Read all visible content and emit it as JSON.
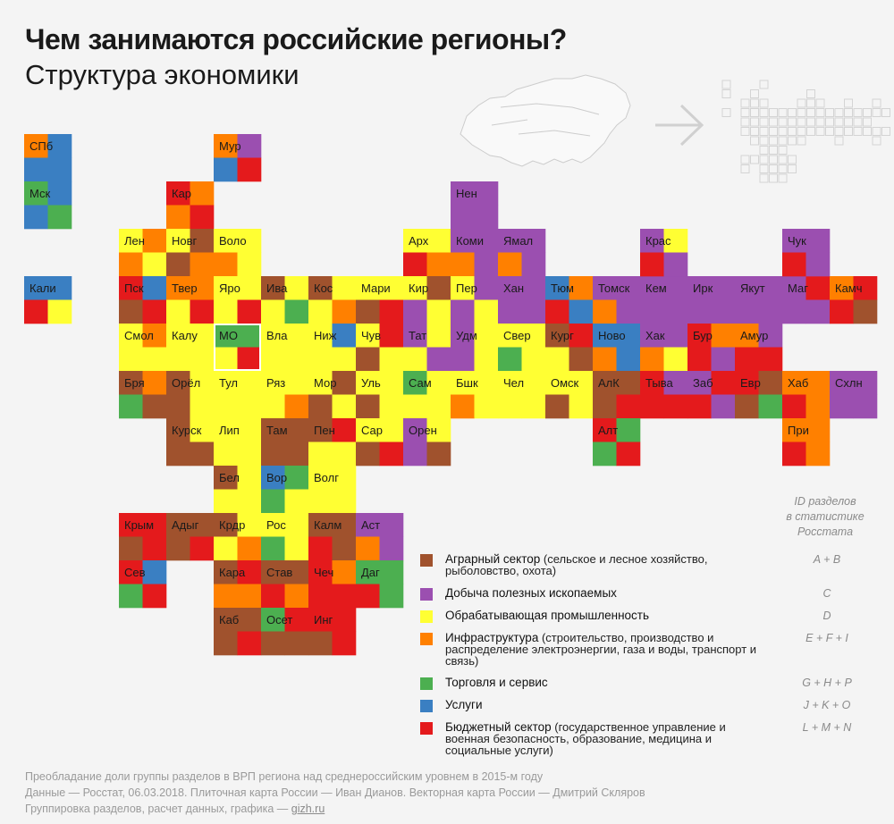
{
  "header": {
    "title": "Чем занимаются российские регионы?",
    "subtitle": "Структура экономики"
  },
  "colors": {
    "A": "#a0522d",
    "C": "#9b4fb0",
    "D": "#ffff33",
    "I": "#ff8000",
    "G": "#4caf50",
    "J": "#3a7fc2",
    "L": "#e41a1c"
  },
  "legend": {
    "id_header": [
      "ID разделов",
      "в статистике",
      "Росстата"
    ],
    "items": [
      {
        "key": "A",
        "name": "Аграрный сектор",
        "desc": " (сельское и лесное хозяйство,",
        "desc2": "рыболовство, охота)",
        "desc3": "",
        "code": "A + B"
      },
      {
        "key": "C",
        "name": "Добыча полезных ископаемых",
        "desc": "",
        "desc2": "",
        "desc3": "",
        "code": "C"
      },
      {
        "key": "D",
        "name": "Обрабатывающая промышленность",
        "desc": "",
        "desc2": "",
        "desc3": "",
        "code": "D"
      },
      {
        "key": "I",
        "name": "Инфраструктура",
        "desc": " (строительство, производство и",
        "desc2": "распределение электроэнергии, газа и воды, транспорт и",
        "desc3": "связь)",
        "code": "E + F + I"
      },
      {
        "key": "G",
        "name": "Торговля и сервис",
        "desc": "",
        "desc2": "",
        "desc3": "",
        "code": "G + H + P"
      },
      {
        "key": "J",
        "name": "Услуги",
        "desc": "",
        "desc2": "",
        "desc3": "",
        "code": "J + K + O"
      },
      {
        "key": "L",
        "name": "Бюджетный сектор",
        "desc": " (государственное управление и",
        "desc2": "военная безопасность, образование, медицина и",
        "desc3": "социальные услуги)",
        "code": "L + M + N"
      }
    ]
  },
  "footer": {
    "line1": "Преобладание доли группы разделов в ВРП региона над среднероссийским уровнем в 2015-м году",
    "line2": "Данные — Росстат, 06.03.2018. Плиточная карта России — Иван Дианов. Векторная карта России — Дмитрий Скляров",
    "line3_prefix": "Группировка разделов, расчет данных, графика — ",
    "line3_link": "gizh.ru"
  },
  "chart_data": {
    "type": "heatmap",
    "description_key": "tile map; each region tile has 4 quadrants (TL, TR, BL, BR) colored by sector key",
    "regions": [
      {
        "label": "СПб",
        "col": 0,
        "row": 0,
        "q": [
          "I",
          "J",
          "J",
          "J"
        ]
      },
      {
        "label": "Мск",
        "col": 0,
        "row": 1,
        "q": [
          "G",
          "J",
          "J",
          "G"
        ]
      },
      {
        "label": "Кали",
        "col": 0,
        "row": 3,
        "q": [
          "J",
          "J",
          "L",
          "D"
        ]
      },
      {
        "label": "Мур",
        "col": 4,
        "row": 0,
        "q": [
          "I",
          "C",
          "J",
          "L"
        ]
      },
      {
        "label": "Кар",
        "col": 3,
        "row": 1,
        "q": [
          "L",
          "I",
          "I",
          "L"
        ]
      },
      {
        "label": "Лен",
        "col": 2,
        "row": 2,
        "q": [
          "D",
          "I",
          "I",
          "D"
        ]
      },
      {
        "label": "Новг",
        "col": 3,
        "row": 2,
        "q": [
          "D",
          "A",
          "A",
          "I"
        ]
      },
      {
        "label": "Воло",
        "col": 4,
        "row": 2,
        "q": [
          "D",
          "D",
          "I",
          "D"
        ]
      },
      {
        "label": "Пск",
        "col": 2,
        "row": 3,
        "q": [
          "L",
          "J",
          "A",
          "L"
        ]
      },
      {
        "label": "Твер",
        "col": 3,
        "row": 3,
        "q": [
          "I",
          "I",
          "D",
          "L"
        ]
      },
      {
        "label": "Яро",
        "col": 4,
        "row": 3,
        "q": [
          "D",
          "D",
          "D",
          "L"
        ]
      },
      {
        "label": "Ива",
        "col": 5,
        "row": 3,
        "q": [
          "A",
          "D",
          "D",
          "G"
        ]
      },
      {
        "label": "Кос",
        "col": 6,
        "row": 3,
        "q": [
          "A",
          "D",
          "D",
          "I"
        ]
      },
      {
        "label": "Мари",
        "col": 7,
        "row": 3,
        "q": [
          "D",
          "D",
          "A",
          "L"
        ]
      },
      {
        "label": "Арх",
        "col": 8,
        "row": 2,
        "q": [
          "D",
          "D",
          "L",
          "I"
        ]
      },
      {
        "label": "Нен",
        "col": 9,
        "row": 1,
        "q": [
          "C",
          "C",
          "C",
          "C"
        ]
      },
      {
        "label": "Коми",
        "col": 9,
        "row": 2,
        "q": [
          "C",
          "C",
          "I",
          "C"
        ]
      },
      {
        "label": "Ямал",
        "col": 10,
        "row": 2,
        "q": [
          "C",
          "C",
          "I",
          "C"
        ]
      },
      {
        "label": "Кир",
        "col": 8,
        "row": 3,
        "q": [
          "D",
          "A",
          "C",
          "D"
        ]
      },
      {
        "label": "Пер",
        "col": 9,
        "row": 3,
        "q": [
          "D",
          "C",
          "C",
          "D"
        ]
      },
      {
        "label": "Хан",
        "col": 10,
        "row": 3,
        "q": [
          "C",
          "C",
          "C",
          "C"
        ]
      },
      {
        "label": "Тюм",
        "col": 11,
        "row": 3,
        "q": [
          "J",
          "I",
          "L",
          "J"
        ]
      },
      {
        "label": "Томск",
        "col": 12,
        "row": 3,
        "q": [
          "C",
          "C",
          "I",
          "C"
        ]
      },
      {
        "label": "Кем",
        "col": 13,
        "row": 3,
        "q": [
          "C",
          "C",
          "C",
          "C"
        ]
      },
      {
        "label": "Ирк",
        "col": 14,
        "row": 3,
        "q": [
          "C",
          "C",
          "C",
          "C"
        ]
      },
      {
        "label": "Якут",
        "col": 15,
        "row": 3,
        "q": [
          "C",
          "C",
          "C",
          "C"
        ]
      },
      {
        "label": "Маг",
        "col": 16,
        "row": 3,
        "q": [
          "C",
          "L",
          "C",
          "C"
        ]
      },
      {
        "label": "Камч",
        "col": 17,
        "row": 3,
        "q": [
          "I",
          "L",
          "L",
          "A"
        ]
      },
      {
        "label": "Крас",
        "col": 13,
        "row": 2,
        "q": [
          "C",
          "D",
          "L",
          "C"
        ]
      },
      {
        "label": "Чук",
        "col": 16,
        "row": 2,
        "q": [
          "C",
          "C",
          "L",
          "C"
        ]
      },
      {
        "label": "Смол",
        "col": 2,
        "row": 4,
        "q": [
          "D",
          "I",
          "D",
          "D"
        ]
      },
      {
        "label": "Калу",
        "col": 3,
        "row": 4,
        "q": [
          "D",
          "D",
          "D",
          "D"
        ]
      },
      {
        "label": "МО",
        "col": 4,
        "row": 4,
        "q": [
          "G",
          "G",
          "D",
          "L"
        ]
      },
      {
        "label": "Вла",
        "col": 5,
        "row": 4,
        "q": [
          "D",
          "D",
          "D",
          "D"
        ]
      },
      {
        "label": "Ниж",
        "col": 6,
        "row": 4,
        "q": [
          "D",
          "J",
          "D",
          "D"
        ]
      },
      {
        "label": "Чув",
        "col": 7,
        "row": 4,
        "q": [
          "D",
          "L",
          "A",
          "D"
        ]
      },
      {
        "label": "Тат",
        "col": 8,
        "row": 4,
        "q": [
          "C",
          "D",
          "D",
          "C"
        ]
      },
      {
        "label": "Удм",
        "col": 9,
        "row": 4,
        "q": [
          "C",
          "D",
          "C",
          "D"
        ]
      },
      {
        "label": "Свер",
        "col": 10,
        "row": 4,
        "q": [
          "D",
          "D",
          "G",
          "D"
        ]
      },
      {
        "label": "Кург",
        "col": 11,
        "row": 4,
        "q": [
          "A",
          "L",
          "D",
          "A"
        ]
      },
      {
        "label": "Ново",
        "col": 12,
        "row": 4,
        "q": [
          "J",
          "J",
          "I",
          "J"
        ]
      },
      {
        "label": "Хак",
        "col": 13,
        "row": 4,
        "q": [
          "C",
          "C",
          "I",
          "D"
        ]
      },
      {
        "label": "Бур",
        "col": 14,
        "row": 4,
        "q": [
          "L",
          "I",
          "L",
          "C"
        ]
      },
      {
        "label": "Амур",
        "col": 15,
        "row": 4,
        "q": [
          "I",
          "C",
          "L",
          "L"
        ]
      },
      {
        "label": "Бря",
        "col": 2,
        "row": 5,
        "q": [
          "A",
          "I",
          "G",
          "A"
        ]
      },
      {
        "label": "Орёл",
        "col": 3,
        "row": 5,
        "q": [
          "A",
          "D",
          "A",
          "D"
        ]
      },
      {
        "label": "Тул",
        "col": 4,
        "row": 5,
        "q": [
          "D",
          "D",
          "D",
          "D"
        ]
      },
      {
        "label": "Ряз",
        "col": 5,
        "row": 5,
        "q": [
          "D",
          "D",
          "D",
          "I"
        ]
      },
      {
        "label": "Мор",
        "col": 6,
        "row": 5,
        "q": [
          "D",
          "A",
          "A",
          "D"
        ]
      },
      {
        "label": "Уль",
        "col": 7,
        "row": 5,
        "q": [
          "D",
          "D",
          "A",
          "D"
        ]
      },
      {
        "label": "Сам",
        "col": 8,
        "row": 5,
        "q": [
          "G",
          "D",
          "D",
          "D"
        ]
      },
      {
        "label": "Бшк",
        "col": 9,
        "row": 5,
        "q": [
          "D",
          "D",
          "I",
          "D"
        ]
      },
      {
        "label": "Чел",
        "col": 10,
        "row": 5,
        "q": [
          "D",
          "D",
          "D",
          "D"
        ]
      },
      {
        "label": "Омск",
        "col": 11,
        "row": 5,
        "q": [
          "D",
          "D",
          "A",
          "D"
        ]
      },
      {
        "label": "АлК",
        "col": 12,
        "row": 5,
        "q": [
          "A",
          "A",
          "A",
          "L"
        ]
      },
      {
        "label": "Тыва",
        "col": 13,
        "row": 5,
        "q": [
          "L",
          "C",
          "L",
          "L"
        ]
      },
      {
        "label": "Заб",
        "col": 14,
        "row": 5,
        "q": [
          "C",
          "L",
          "L",
          "C"
        ]
      },
      {
        "label": "Евр",
        "col": 15,
        "row": 5,
        "q": [
          "L",
          "A",
          "A",
          "G"
        ]
      },
      {
        "label": "Хаб",
        "col": 16,
        "row": 5,
        "q": [
          "I",
          "I",
          "L",
          "I"
        ]
      },
      {
        "label": "Схлн",
        "col": 17,
        "row": 5,
        "q": [
          "C",
          "C",
          "C",
          "C"
        ]
      },
      {
        "label": "Курск",
        "col": 3,
        "row": 6,
        "q": [
          "A",
          "D",
          "A",
          "A"
        ]
      },
      {
        "label": "Лип",
        "col": 4,
        "row": 6,
        "q": [
          "D",
          "D",
          "D",
          "D"
        ]
      },
      {
        "label": "Там",
        "col": 5,
        "row": 6,
        "q": [
          "A",
          "A",
          "A",
          "A"
        ]
      },
      {
        "label": "Пен",
        "col": 6,
        "row": 6,
        "q": [
          "A",
          "L",
          "D",
          "D"
        ]
      },
      {
        "label": "Сар",
        "col": 7,
        "row": 6,
        "q": [
          "D",
          "D",
          "A",
          "L"
        ]
      },
      {
        "label": "Орен",
        "col": 8,
        "row": 6,
        "q": [
          "C",
          "D",
          "C",
          "A"
        ]
      },
      {
        "label": "Алт",
        "col": 12,
        "row": 6,
        "q": [
          "L",
          "G",
          "G",
          "L"
        ]
      },
      {
        "label": "При",
        "col": 16,
        "row": 6,
        "q": [
          "I",
          "I",
          "L",
          "I"
        ]
      },
      {
        "label": "Бел",
        "col": 4,
        "row": 7,
        "q": [
          "A",
          "D",
          "D",
          "D"
        ]
      },
      {
        "label": "Вор",
        "col": 5,
        "row": 7,
        "q": [
          "J",
          "G",
          "G",
          "D"
        ]
      },
      {
        "label": "Волг",
        "col": 6,
        "row": 7,
        "q": [
          "D",
          "D",
          "D",
          "D"
        ]
      },
      {
        "label": "Крым",
        "col": 2,
        "row": 8,
        "q": [
          "L",
          "L",
          "A",
          "L"
        ]
      },
      {
        "label": "Адыг",
        "col": 3,
        "row": 8,
        "q": [
          "A",
          "A",
          "A",
          "L"
        ]
      },
      {
        "label": "Крдр",
        "col": 4,
        "row": 8,
        "q": [
          "A",
          "D",
          "D",
          "I"
        ]
      },
      {
        "label": "Рос",
        "col": 5,
        "row": 8,
        "q": [
          "D",
          "D",
          "G",
          "D"
        ]
      },
      {
        "label": "Калм",
        "col": 6,
        "row": 8,
        "q": [
          "A",
          "A",
          "L",
          "A"
        ]
      },
      {
        "label": "Аст",
        "col": 7,
        "row": 8,
        "q": [
          "C",
          "C",
          "I",
          "C"
        ]
      },
      {
        "label": "Сев",
        "col": 2,
        "row": 9,
        "q": [
          "L",
          "J",
          "G",
          "L"
        ]
      },
      {
        "label": "Кара",
        "col": 4,
        "row": 9,
        "q": [
          "A",
          "L",
          "I",
          "I"
        ]
      },
      {
        "label": "Став",
        "col": 5,
        "row": 9,
        "q": [
          "A",
          "A",
          "L",
          "I"
        ]
      },
      {
        "label": "Чеч",
        "col": 6,
        "row": 9,
        "q": [
          "L",
          "I",
          "L",
          "L"
        ]
      },
      {
        "label": "Даг",
        "col": 7,
        "row": 9,
        "q": [
          "G",
          "G",
          "L",
          "G"
        ]
      },
      {
        "label": "Каб",
        "col": 4,
        "row": 10,
        "q": [
          "A",
          "A",
          "A",
          "L"
        ]
      },
      {
        "label": "Осет",
        "col": 5,
        "row": 10,
        "q": [
          "G",
          "L",
          "A",
          "A"
        ]
      },
      {
        "label": "Инг",
        "col": 6,
        "row": 10,
        "q": [
          "L",
          "L",
          "A",
          "L"
        ]
      }
    ]
  }
}
